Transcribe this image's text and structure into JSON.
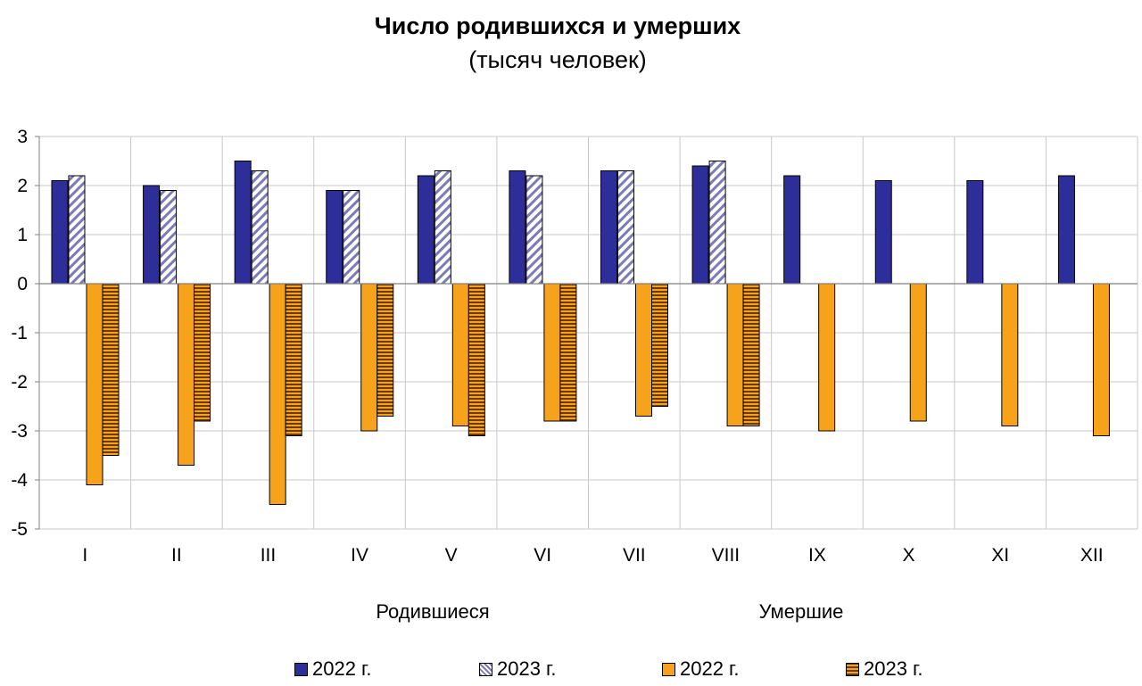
{
  "title": "Число родившихся и умерших",
  "subtitle": "(тысяч человек)",
  "colors": {
    "births_2022": "#2E2E9A",
    "births_2023_stripe": "#7B7BB5",
    "deaths_2022": "#F7A21B",
    "deaths_2023_stripe": "#6B3A10",
    "grid": "#C8C8C8",
    "axis": "#808080"
  },
  "group_labels": {
    "births": "Родившиеся",
    "deaths": "Умершие"
  },
  "legend": [
    {
      "label": "2022 г.",
      "style": "solid-blue"
    },
    {
      "label": "2023 г.",
      "style": "hatched-blue"
    },
    {
      "label": "2022 г.",
      "style": "solid-orange"
    },
    {
      "label": "2023 г.",
      "style": "hatched-orange"
    }
  ],
  "chart_data": {
    "type": "bar",
    "categories": [
      "I",
      "II",
      "III",
      "IV",
      "V",
      "VI",
      "VII",
      "VIII",
      "IX",
      "X",
      "XI",
      "XII"
    ],
    "ylim": [
      -5,
      3
    ],
    "yticks": [
      3,
      2,
      1,
      0,
      -1,
      -2,
      -3,
      -4,
      -5
    ],
    "grid": true,
    "legend_position": "bottom",
    "series": [
      {
        "name": "2022 г.",
        "group": "Родившиеся",
        "values": [
          2.1,
          2.0,
          2.5,
          1.9,
          2.2,
          2.3,
          2.3,
          2.4,
          2.2,
          2.1,
          2.1,
          2.2
        ]
      },
      {
        "name": "2023 г.",
        "group": "Родившиеся",
        "values": [
          2.2,
          1.9,
          2.3,
          1.9,
          2.3,
          2.2,
          2.3,
          2.5,
          null,
          null,
          null,
          null
        ]
      },
      {
        "name": "2022 г.",
        "group": "Умершие",
        "values": [
          -4.1,
          -3.7,
          -4.5,
          -3.0,
          -2.9,
          -2.8,
          -2.7,
          -2.9,
          -3.0,
          -2.8,
          -2.9,
          -3.1
        ]
      },
      {
        "name": "2023 г.",
        "group": "Умершие",
        "values": [
          -3.5,
          -2.8,
          -3.1,
          -2.7,
          -3.1,
          -2.8,
          -2.5,
          -2.9,
          null,
          null,
          null,
          null
        ]
      }
    ]
  }
}
